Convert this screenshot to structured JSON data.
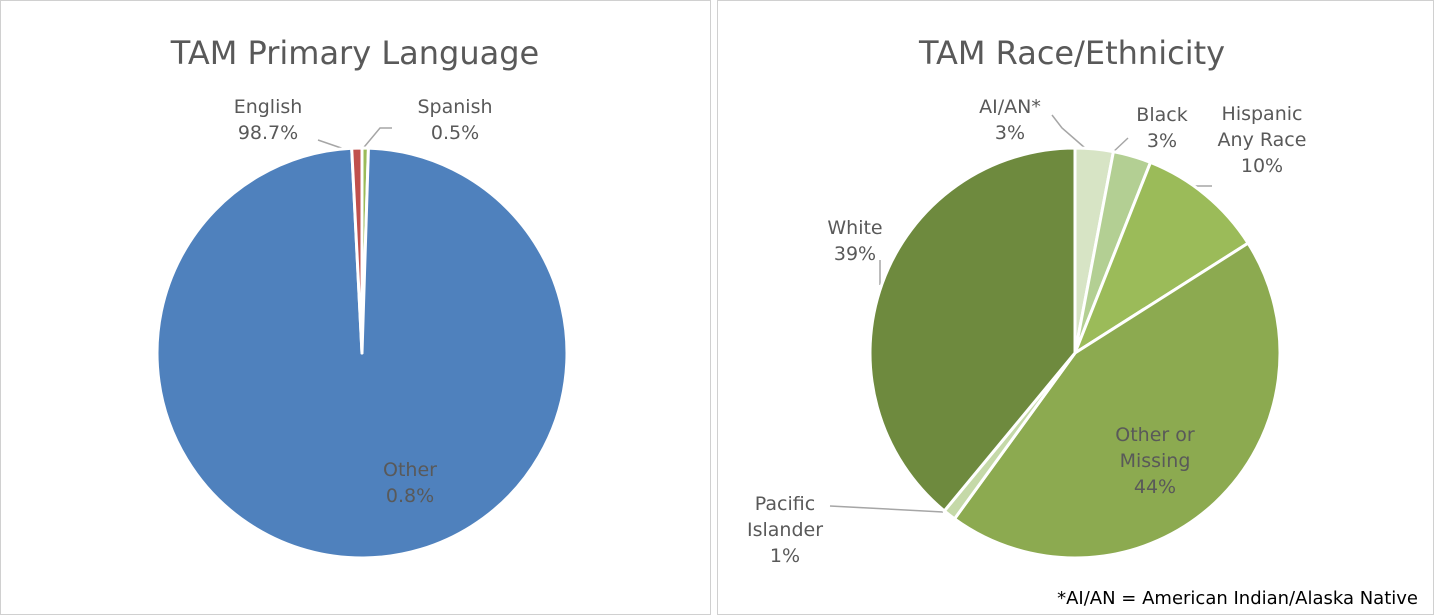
{
  "chart_data": [
    {
      "type": "pie",
      "title": "TAM Primary Language",
      "categories": [
        "Spanish",
        "English",
        "Other"
      ],
      "values": [
        0.5,
        98.7,
        0.8
      ],
      "value_labels": [
        "0.5%",
        "98.7%",
        "0.8%"
      ],
      "colors": [
        "#9bbb59",
        "#4f81bd",
        "#c0504d"
      ]
    },
    {
      "type": "pie",
      "title": "TAM Race/Ethnicity",
      "categories": [
        "AI/AN*",
        "Black",
        "Hispanic Any Race",
        "Other or Missing",
        "Pacific Islander",
        "White"
      ],
      "values": [
        3,
        3,
        10,
        44,
        1,
        39
      ],
      "value_labels": [
        "3%",
        "3%",
        "10%",
        "44%",
        "1%",
        "39%"
      ],
      "colors": [
        "#d7e4c5",
        "#b3cf93",
        "#9bbb59",
        "#8caa50",
        "#c5d9a8",
        "#6e8a3e"
      ],
      "note": "*AI/AN = American Indian/Alaska Native"
    }
  ]
}
